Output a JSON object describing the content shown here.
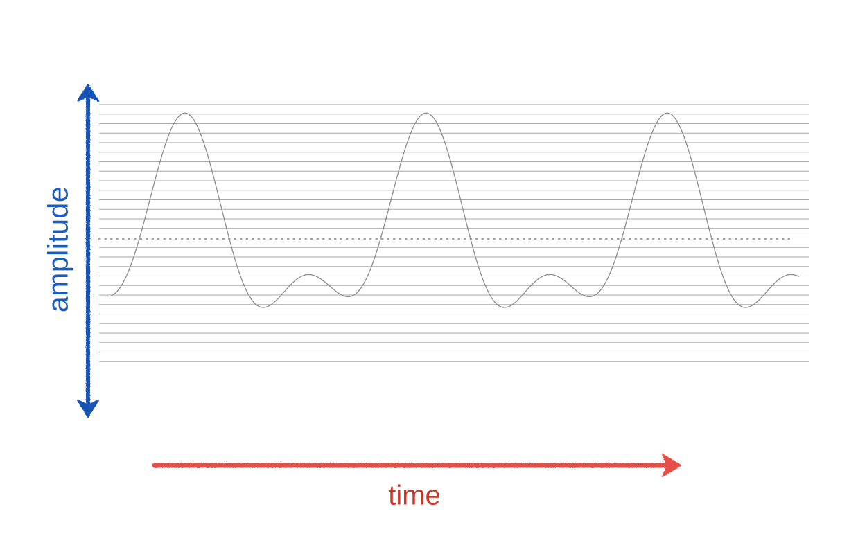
{
  "labels": {
    "vertical_axis": "amplitude",
    "horizontal_axis": "time"
  },
  "colors": {
    "background": "#ffffff",
    "amplitude_arrow": "#1553b5",
    "amplitude_text": "#1a5cb8",
    "time_arrow": "#e5504a",
    "time_text": "#c23a2c",
    "waveform": "#8c8c8c",
    "grid_lines": "#a8a8a8",
    "zero_line": "#a0a0a0"
  },
  "icons": [
    "double-headed-arrow-icon",
    "right-arrow-icon"
  ]
}
